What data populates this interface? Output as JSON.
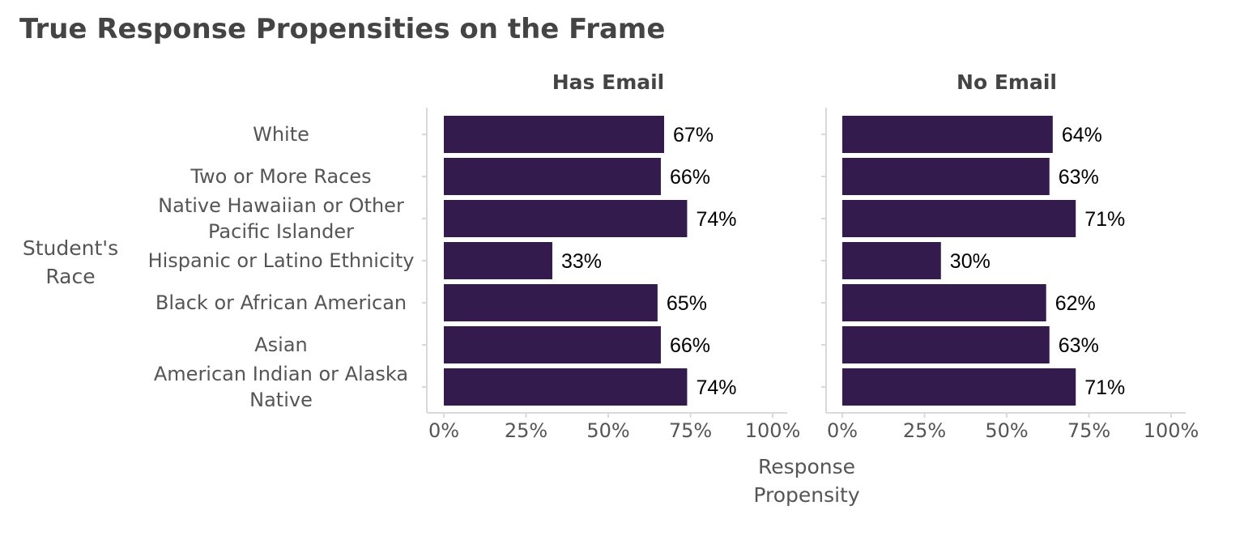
{
  "chart_data": {
    "type": "bar",
    "orientation": "horizontal",
    "title": "True Response Propensities on the Frame",
    "ylabel": [
      "Student's",
      "Race"
    ],
    "xlabel": [
      "Response",
      "Propensity"
    ],
    "xlim": [
      0,
      100
    ],
    "xticks": [
      "0%",
      "25%",
      "50%",
      "75%",
      "100%"
    ],
    "bar_color": "#331c4d",
    "categories": [
      [
        "White"
      ],
      [
        "Two or More Races"
      ],
      [
        "Native Hawaiian or Other",
        "Pacific Islander"
      ],
      [
        "Hispanic or Latino Ethnicity"
      ],
      [
        "Black or African American"
      ],
      [
        "Asian"
      ],
      [
        "American Indian or Alaska",
        "Native"
      ]
    ],
    "panels": [
      {
        "title": "Has Email",
        "values": [
          67,
          66,
          74,
          33,
          65,
          66,
          74
        ],
        "labels": [
          "67%",
          "66%",
          "74%",
          "33%",
          "65%",
          "66%",
          "74%"
        ]
      },
      {
        "title": "No Email",
        "values": [
          64,
          63,
          71,
          30,
          62,
          63,
          71
        ],
        "labels": [
          "64%",
          "63%",
          "71%",
          "30%",
          "62%",
          "63%",
          "71%"
        ]
      }
    ]
  }
}
